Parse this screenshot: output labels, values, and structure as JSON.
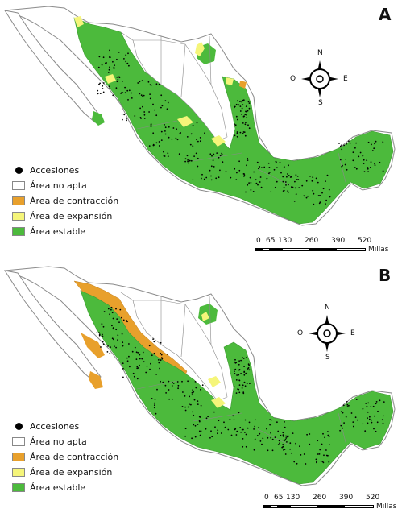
{
  "panels": [
    {
      "letter": "A",
      "legend": {
        "accessions": "Accesiones",
        "not_suitable": "Área no apta",
        "contraction": "Área de contracción",
        "expansion": "Área de expansión",
        "stable": "Área estable"
      },
      "compass": {
        "n": "N",
        "s": "S",
        "e": "E",
        "o": "O"
      },
      "scale": {
        "ticks": [
          "0",
          "65",
          "130",
          "260",
          "390",
          "520"
        ],
        "units": "Millas"
      }
    },
    {
      "letter": "B",
      "legend": {
        "accessions": "Accesiones",
        "not_suitable": "Área no apta",
        "contraction": "Área de contracción",
        "expansion": "Área de expansión",
        "stable": "Área estable"
      },
      "compass": {
        "n": "N",
        "s": "S",
        "e": "E",
        "o": "O"
      },
      "scale": {
        "ticks": [
          "0",
          "65",
          "130",
          "260",
          "390",
          "520"
        ],
        "units": "Millas"
      }
    }
  ],
  "colors": {
    "stable": "#4cba3c",
    "contraction": "#e8a02c",
    "expansion": "#f5f57a",
    "not_suitable": "#ffffff",
    "border": "#8a8a8a",
    "accessions": "#000000"
  }
}
